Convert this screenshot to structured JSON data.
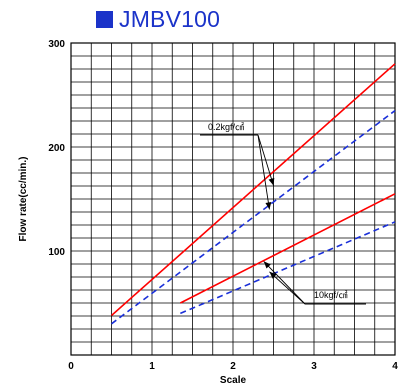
{
  "header": {
    "title": "JMBV100",
    "marker_color": "#1b33c9"
  },
  "chart_data": {
    "type": "line",
    "xlabel": "Scale",
    "ylabel": "Flow rate(cc/min.)",
    "xlim": [
      0,
      4
    ],
    "ylim": [
      0,
      300
    ],
    "x_ticks": [
      "0",
      "1",
      "2",
      "3",
      "4"
    ],
    "y_ticks": [
      "100",
      "200",
      "300"
    ],
    "grid": true,
    "series": [
      {
        "color": "#ff0000",
        "dash": "solid",
        "x": [
          0.5,
          4
        ],
        "y": [
          38,
          280
        ]
      },
      {
        "color": "#1a2fd8",
        "dash": "dashed",
        "x": [
          0.5,
          4
        ],
        "y": [
          30,
          235
        ]
      },
      {
        "color": "#ff0000",
        "dash": "solid",
        "x": [
          1.35,
          4
        ],
        "y": [
          50,
          155
        ]
      },
      {
        "color": "#1a2fd8",
        "dash": "dashed",
        "x": [
          1.35,
          4
        ],
        "y": [
          40,
          128
        ]
      }
    ],
    "annotations": [
      {
        "text": "0.2kgf/㎠",
        "pointer_x": [
          2.5,
          2.45
        ],
        "pointer_y": [
          163,
          140
        ]
      },
      {
        "text": "10kgf/㎠",
        "pointer_x": [
          2.38,
          2.45
        ],
        "pointer_y": [
          90,
          80
        ]
      }
    ]
  }
}
